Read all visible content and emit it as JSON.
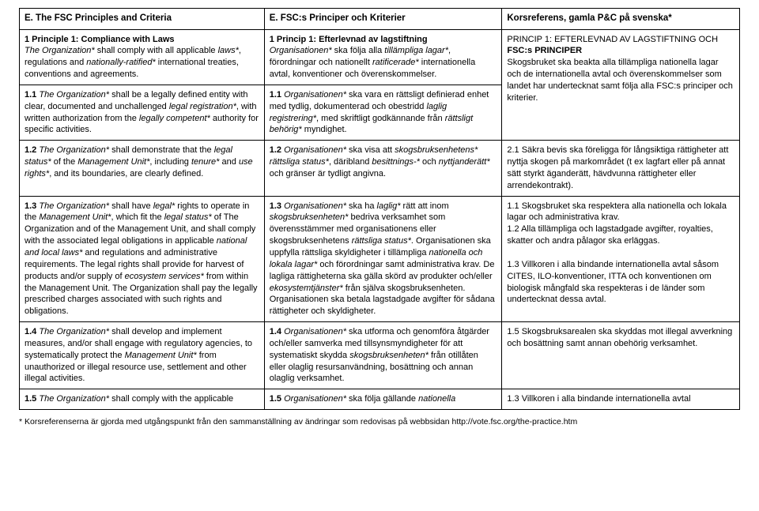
{
  "headers": {
    "col1": "E. The FSC Principles and Criteria",
    "col2": "E. FSC:s Principer och Kriterier",
    "col3": "Korsreferens, gamla P&C på svenska*"
  },
  "rows": [
    {
      "c1": "<span class='b'>1 Principle 1: Compliance with Laws</span><br><span class='i'>The Organization*</span> shall comply with all applicable <span class='i'>laws*</span>, regulations and <span class='i'>nationally-ratified*</span> international treaties, conventions and agreements.",
      "c2": "<span class='b'>1 Princip 1: Efterlevnad av lagstiftning</span><br><span class='i'>Organisationen*</span> ska följa alla <span class='i'>tillämpliga lagar*</span>, förordningar och nationellt <span class='i'>ratificerade*</span> internationella avtal, konventioner och överenskommelser.",
      "c3": "PRINCIP 1: EFTERLEVNAD AV LAGSTIFTNING OCH <span class='b'>FSC:s PRINCIPER</span><br>Skogsbruket ska beakta alla tillämpliga nationella lagar och de internationella avtal och överenskommelser som landet har undertecknat samt följa alla FSC:s principer och kriterier.",
      "c3rowspan": 2
    },
    {
      "c1": "<span class='b'>1.1</span> <span class='i'>The Organization*</span> shall be a legally defined entity with clear, documented and unchallenged <span class='i'>legal registration*</span>, with written authorization from the <span class='i'>legally competent*</span> authority for specific activities.",
      "c2": "<span class='b'>1.1</span> <span class='i'>Organisationen*</span> ska vara en rättsligt definierad enhet med tydlig, dokumenterad och obestridd <span class='i'>laglig registrering*</span>, med skriftligt godkännande från <span class='i'>rättsligt behörig*</span> myndighet."
    },
    {
      "c1": "<span class='b'>1.2</span> <span class='i'>The Organization*</span> shall demonstrate that the <span class='i'>legal status*</span> of the <span class='i'>Management Unit*</span>, including <span class='i'>tenure*</span> and <span class='i'>use rights*</span>, and its boundaries, are clearly defined.",
      "c2": "<span class='b'>1.2</span> <span class='i'>Organisationen*</span> ska visa att <span class='i'>skogsbruksenhetens*</span> <span class='i'>rättsliga status*</span>, däribland <span class='i'>besittnings-*</span> och <span class='i'>nyttjanderätt*</span> och gränser är tydligt angivna.",
      "c3": "2.1 Säkra bevis ska föreligga för långsiktiga rättigheter att nyttja skogen på markområdet (t ex lagfart eller på annat sätt styrkt äganderätt, hävdvunna rättigheter eller arrendekontrakt)."
    },
    {
      "c1": "<span class='b'>1.3</span> <span class='i'>The Organization*</span> shall have <span class='i'>legal*</span> rights to operate in the <span class='i'>Management Unit*</span>, which fit the <span class='i'>legal status*</span> of The Organization and of the Management Unit, and shall comply with the associated legal obligations in applicable <span class='i'>national and local laws*</span> and regulations and administrative requirements. The legal rights shall provide for harvest of products and/or supply of <span class='i'>ecosystem services*</span> from within the Management Unit. The Organization shall pay the legally prescribed charges associated with such rights and obligations.",
      "c2": "<span class='b'>1.3</span> <span class='i'>Organisationen*</span> ska ha <span class='i'>laglig*</span> rätt att inom <span class='i'>skogsbruksenheten*</span> bedriva verksamhet som överensstämmer med organisationens eller skogsbruksenhetens <span class='i'>rättsliga status*</span>. Organisationen ska uppfylla rättsliga skyldigheter i tillämpliga <span class='i'>nationella och lokala lagar*</span> och förordningar samt administrativa krav. De lagliga rättigheterna ska gälla skörd av produkter och/eller <span class='i'>ekosystemtjänster*</span> från själva skogsbruksenheten. Organisationen ska betala lagstadgade avgifter för sådana rättigheter och skyldigheter.",
      "c3": "1.1 Skogsbruket ska respektera alla nationella och lokala lagar och administrativa krav.<br>1.2 Alla tillämpliga och lagstadgade avgifter, royalties, skatter och andra pålagor ska erläggas.<br><br>1.3 Villkoren i alla bindande internationella avtal såsom CITES, ILO-konventioner, ITTA och konventionen om biologisk mångfald ska respekteras i de länder som undertecknat dessa avtal."
    },
    {
      "c1": "<span class='b'>1.4</span> <span class='i'>The Organization*</span> shall develop and implement measures, and/or shall engage with regulatory agencies, to systematically protect the <span class='i'>Management Unit*</span> from unauthorized or illegal resource use, settlement and other illegal activities.",
      "c2": "<span class='b'>1.4</span> <span class='i'>Organisationen*</span> ska utforma och genomföra åtgärder och/eller samverka med tillsynsmyndigheter för att systematiskt skydda <span class='i'>skogsbruksenheten*</span> från otillåten eller olaglig resursanvändning, bosättning och annan olaglig verksamhet.",
      "c3": "1.5 Skogsbruksarealen ska skyddas mot illegal avverkning och bosättning samt annan obehörig verksamhet."
    },
    {
      "c1": "<span class='b'>1.5</span> <span class='i'>The Organization*</span> shall comply with the applicable",
      "c2": "<span class='b'>1.5</span> <span class='i'>Organisationen*</span> ska följa gällande <span class='i'>nationella</span>",
      "c3": "1.3 Villkoren i alla bindande internationella avtal"
    }
  ],
  "footnote": "* Korsreferenserna är gjorda med utgångspunkt från den sammanställning av ändringar som redovisas på webbsidan http://vote.fsc.org/the-practice.htm"
}
